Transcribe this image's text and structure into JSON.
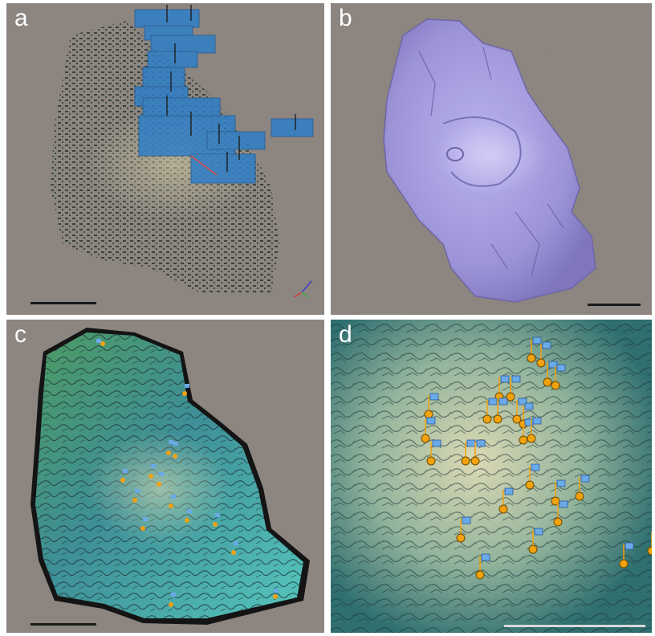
{
  "panels": {
    "a": {
      "label": "a",
      "scale_bar_color": "#1a1a1a"
    },
    "b": {
      "label": "b",
      "scale_bar_color": "#1a1a1a"
    },
    "c": {
      "label": "c",
      "scale_bar_color": "#1a1a1a"
    },
    "d": {
      "label": "d",
      "scale_bar_color": "#d8d8d8"
    }
  },
  "colors": {
    "background_gray": "#8c8580",
    "camera_plane_blue": "#2f7fc8",
    "mesh_lavender": "#9d94d8",
    "seafloor_teal": "#3e9c98",
    "marker_orange": "#f2a20f",
    "flag_blue": "#6aaae8"
  },
  "icons": [
    "camera-plane-icon",
    "annotation-pin-icon",
    "axis-gizmo-icon"
  ]
}
